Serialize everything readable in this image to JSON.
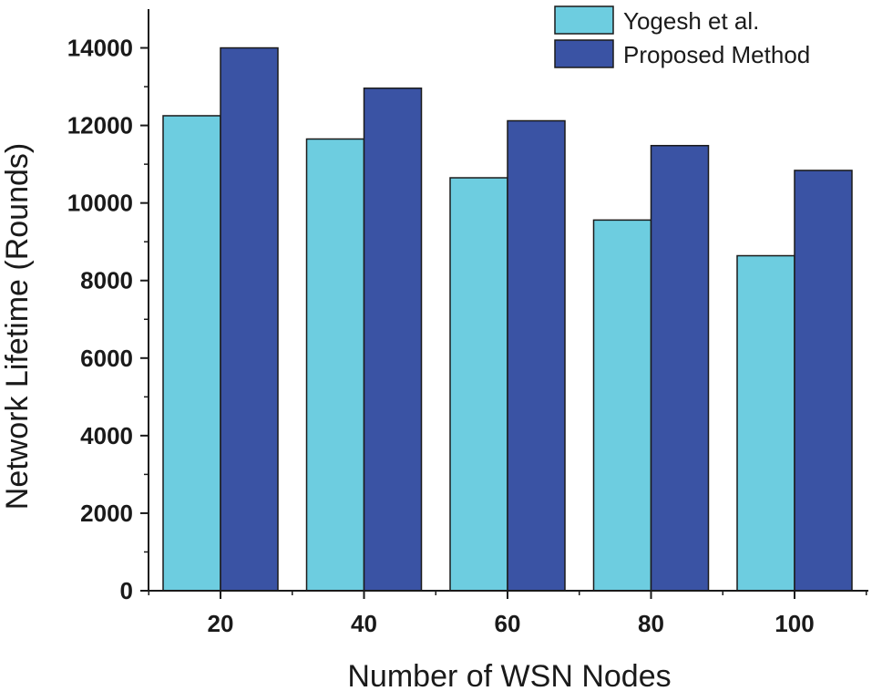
{
  "chart_data": {
    "type": "bar",
    "title": "",
    "xlabel": "Number of WSN Nodes",
    "ylabel": "Network Lifetime (Rounds)",
    "categories": [
      "20",
      "40",
      "60",
      "80",
      "100"
    ],
    "ylim": [
      0,
      15000
    ],
    "yticks": [
      "0",
      "2000",
      "4000",
      "6000",
      "8000",
      "10000",
      "12000",
      "14000"
    ],
    "grid": false,
    "legend_position": "top-right",
    "series": [
      {
        "name": "Yogesh et al.",
        "color": "#6dcde0",
        "values": [
          12250,
          11650,
          10650,
          9560,
          8640
        ]
      },
      {
        "name": "Proposed Method",
        "color": "#3a53a4",
        "values": [
          14000,
          12960,
          12120,
          11480,
          10840
        ]
      }
    ]
  }
}
